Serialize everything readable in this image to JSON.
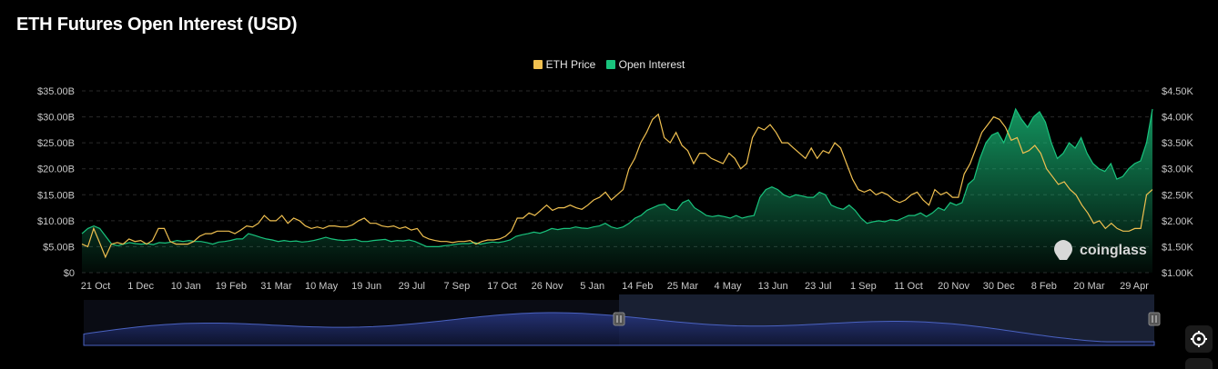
{
  "title": "ETH Futures Open Interest (USD)",
  "watermark": "coinglass",
  "colors": {
    "eth_price": "#f0c050",
    "open_interest": "#19c37d",
    "navigator_line": "#4a62c0",
    "navigator_fill": "#16204a"
  },
  "chart_data": {
    "type": "area",
    "title": "ETH Futures Open Interest (USD)",
    "x_tick_labels": [
      "21 Oct",
      "1 Dec",
      "10 Jan",
      "19 Feb",
      "31 Mar",
      "10 May",
      "19 Jun",
      "29 Jul",
      "7 Sep",
      "17 Oct",
      "26 Nov",
      "5 Jan",
      "14 Feb",
      "25 Mar",
      "4 May",
      "13 Jun",
      "23 Jul",
      "1 Sep",
      "11 Oct",
      "20 Nov",
      "30 Dec",
      "8 Feb",
      "20 Mar",
      "29 Apr"
    ],
    "y_left": {
      "label": "",
      "range": [
        0,
        35
      ],
      "ticks": [
        "$0",
        "$5.00B",
        "$10.00B",
        "$15.00B",
        "$20.00B",
        "$25.00B",
        "$30.00B",
        "$35.00B"
      ]
    },
    "y_right": {
      "label": "",
      "range": [
        1.0,
        4.5
      ],
      "ticks": [
        "$1.00K",
        "$1.50K",
        "$2.00K",
        "$2.50K",
        "$3.00K",
        "$3.50K",
        "$4.00K",
        "$4.50K"
      ]
    },
    "grid": true,
    "legend_placement": "top-center",
    "series": [
      {
        "name": "ETH Price",
        "axis": "right",
        "unit": "USD (K)",
        "style": "line",
        "values": [
          1.55,
          1.5,
          1.85,
          1.58,
          1.3,
          1.55,
          1.58,
          1.55,
          1.65,
          1.6,
          1.62,
          1.55,
          1.62,
          1.85,
          1.85,
          1.6,
          1.55,
          1.55,
          1.55,
          1.6,
          1.7,
          1.75,
          1.75,
          1.8,
          1.8,
          1.8,
          1.75,
          1.82,
          1.9,
          1.88,
          1.95,
          2.1,
          2.0,
          2.0,
          2.1,
          1.95,
          2.05,
          2.0,
          1.9,
          1.85,
          1.88,
          1.85,
          1.9,
          1.9,
          1.88,
          1.88,
          1.92,
          2.0,
          2.05,
          1.95,
          1.95,
          1.9,
          1.88,
          1.9,
          1.85,
          1.88,
          1.82,
          1.85,
          1.7,
          1.65,
          1.62,
          1.6,
          1.6,
          1.58,
          1.6,
          1.6,
          1.62,
          1.55,
          1.6,
          1.63,
          1.63,
          1.65,
          1.7,
          1.8,
          2.05,
          2.05,
          2.15,
          2.1,
          2.2,
          2.3,
          2.2,
          2.25,
          2.25,
          2.3,
          2.25,
          2.22,
          2.3,
          2.4,
          2.45,
          2.55,
          2.4,
          2.5,
          2.6,
          3.0,
          3.2,
          3.5,
          3.7,
          3.95,
          4.05,
          3.6,
          3.5,
          3.7,
          3.45,
          3.35,
          3.1,
          3.3,
          3.3,
          3.2,
          3.15,
          3.1,
          3.3,
          3.2,
          3.0,
          3.1,
          3.6,
          3.8,
          3.75,
          3.85,
          3.7,
          3.5,
          3.5,
          3.4,
          3.3,
          3.2,
          3.4,
          3.2,
          3.35,
          3.3,
          3.5,
          3.4,
          3.1,
          2.8,
          2.6,
          2.55,
          2.6,
          2.5,
          2.55,
          2.5,
          2.4,
          2.35,
          2.4,
          2.5,
          2.55,
          2.4,
          2.3,
          2.6,
          2.5,
          2.55,
          2.45,
          2.45,
          2.9,
          3.1,
          3.4,
          3.7,
          3.85,
          4.0,
          3.95,
          3.8,
          3.55,
          3.6,
          3.3,
          3.35,
          3.45,
          3.3,
          3.0,
          2.85,
          2.7,
          2.75,
          2.6,
          2.5,
          2.3,
          2.15,
          1.95,
          2.0,
          1.85,
          1.95,
          1.85,
          1.8,
          1.8,
          1.85,
          1.85,
          2.5,
          2.6
        ]
      },
      {
        "name": "Open Interest",
        "axis": "left",
        "unit": "USD (B)",
        "style": "area",
        "values": [
          7.5,
          8.5,
          9.0,
          8.5,
          7.0,
          5.5,
          5.2,
          5.5,
          5.8,
          5.6,
          5.5,
          5.6,
          5.4,
          5.8,
          5.7,
          5.9,
          6.2,
          6.0,
          6.2,
          6.0,
          6.0,
          5.8,
          5.5,
          5.9,
          6.0,
          6.2,
          6.5,
          6.5,
          7.5,
          7.2,
          6.8,
          6.5,
          6.3,
          6.0,
          6.2,
          6.0,
          6.1,
          5.9,
          6.0,
          6.2,
          6.5,
          6.8,
          6.5,
          6.3,
          6.2,
          6.3,
          6.4,
          6.0,
          6.0,
          6.2,
          6.3,
          6.4,
          6.0,
          6.2,
          6.1,
          6.3,
          6.0,
          5.5,
          5.0,
          5.0,
          5.0,
          5.2,
          5.3,
          5.5,
          5.6,
          5.6,
          5.8,
          5.5,
          5.7,
          5.9,
          5.8,
          6.0,
          6.3,
          7.0,
          7.3,
          7.5,
          7.8,
          7.6,
          8.0,
          8.5,
          8.3,
          8.5,
          8.5,
          8.8,
          8.6,
          8.5,
          8.8,
          9.0,
          9.5,
          8.8,
          8.5,
          8.8,
          9.5,
          10.5,
          11.0,
          12.0,
          12.5,
          13.0,
          13.2,
          12.2,
          12.0,
          13.5,
          14.0,
          12.5,
          11.8,
          11.0,
          10.8,
          11.0,
          10.8,
          10.5,
          11.0,
          10.5,
          10.8,
          11.0,
          14.5,
          16.0,
          16.5,
          16.0,
          15.0,
          14.5,
          15.0,
          14.8,
          14.5,
          14.5,
          15.5,
          15.0,
          13.0,
          12.5,
          12.2,
          13.0,
          12.0,
          10.5,
          9.5,
          9.8,
          10.0,
          9.8,
          10.2,
          10.0,
          10.5,
          11.0,
          11.0,
          11.5,
          10.8,
          11.5,
          12.5,
          12.0,
          13.5,
          13.0,
          13.5,
          17.0,
          18.0,
          22.0,
          25.0,
          26.5,
          27.0,
          25.0,
          28.0,
          31.5,
          29.5,
          28.0,
          30.0,
          31.0,
          29.0,
          25.0,
          22.0,
          23.0,
          25.0,
          24.0,
          26.0,
          23.0,
          21.0,
          20.0,
          19.5,
          21.0,
          18.0,
          18.5,
          20.0,
          21.0,
          21.5,
          25.0,
          31.5
        ]
      }
    ]
  }
}
